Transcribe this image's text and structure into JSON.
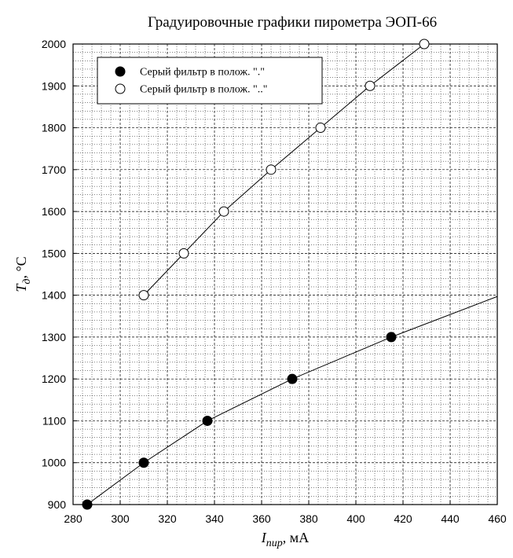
{
  "chart_data": {
    "type": "scatter",
    "title": "Градуировочные графики пирометра ЭОП-66",
    "xlabel_main": "I",
    "xlabel_sub": "пир",
    "xlabel_unit": ", мА",
    "ylabel_main": "T",
    "ylabel_sub": "д",
    "ylabel_unit": ", °C",
    "xlim": [
      280,
      460
    ],
    "ylim": [
      900,
      2000
    ],
    "x_ticks": [
      280,
      300,
      320,
      340,
      360,
      380,
      400,
      420,
      440,
      460
    ],
    "y_ticks": [
      900,
      1000,
      1100,
      1200,
      1300,
      1400,
      1500,
      1600,
      1700,
      1800,
      1900,
      2000
    ],
    "grid": "major and minor dotted",
    "legend_position": "top-left",
    "series": [
      {
        "name": "Серый фильтр в полож. \".\"",
        "marker": "filled-circle",
        "color": "#000000",
        "points": [
          [
            286,
            900
          ],
          [
            310,
            1000
          ],
          [
            337,
            1100
          ],
          [
            373,
            1200
          ],
          [
            415,
            1300
          ]
        ],
        "fit_line": [
          [
            286,
            900
          ],
          [
            310,
            1000
          ],
          [
            337,
            1100
          ],
          [
            373,
            1200
          ],
          [
            415,
            1300
          ],
          [
            460,
            1397
          ]
        ]
      },
      {
        "name": "Серый фильтр в полож. \"..\"",
        "marker": "open-circle",
        "color": "#000000",
        "points": [
          [
            310,
            1400
          ],
          [
            327,
            1500
          ],
          [
            344,
            1600
          ],
          [
            364,
            1700
          ],
          [
            385,
            1800
          ],
          [
            406,
            1900
          ],
          [
            429,
            2000
          ]
        ]
      }
    ]
  }
}
